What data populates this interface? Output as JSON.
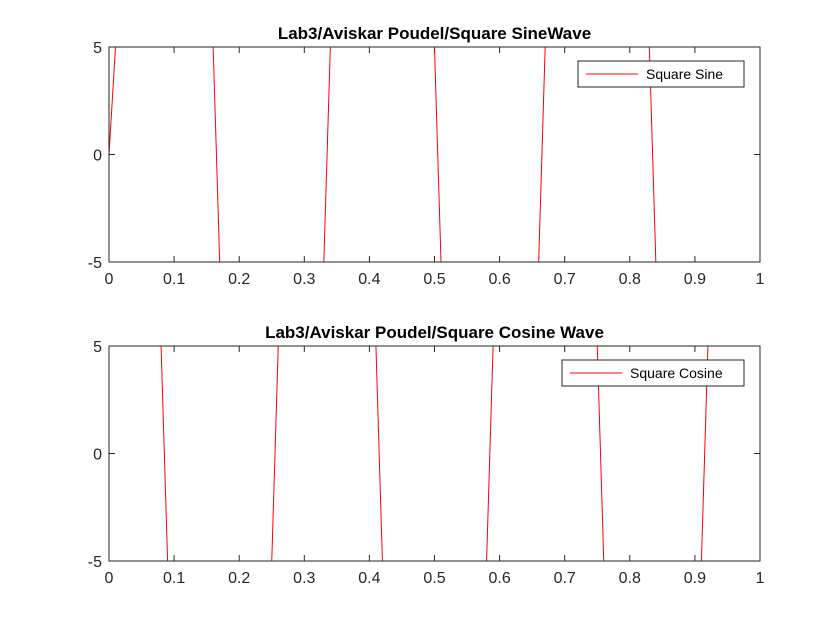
{
  "chart_data": [
    {
      "type": "line",
      "title": "Lab3/Aviskar Poudel/Square SineWave",
      "xlabel": "",
      "ylabel": "",
      "xlim": [
        0,
        1
      ],
      "ylim": [
        -5,
        5
      ],
      "x_ticks": [
        "0",
        "0.1",
        "0.2",
        "0.3",
        "0.4",
        "0.5",
        "0.6",
        "0.7",
        "0.8",
        "0.9",
        "1"
      ],
      "y_ticks": [
        "-5",
        "0",
        "5"
      ],
      "grid": false,
      "legend": {
        "placement": "top-right",
        "entries": [
          "Square Sine"
        ]
      },
      "series": [
        {
          "name": "Square Sine",
          "color": "#ff0000",
          "x": [
            0,
            0.01,
            0.16,
            0.17,
            0.33,
            0.34,
            0.5,
            0.51,
            0.66,
            0.67,
            0.83,
            0.84,
            1.0
          ],
          "y": [
            0,
            5,
            5,
            -5,
            -5,
            5,
            5,
            -5,
            -5,
            5,
            5,
            -5,
            -5
          ]
        }
      ]
    },
    {
      "type": "line",
      "title": "Lab3/Aviskar Poudel/Square Cosine Wave",
      "xlabel": "",
      "ylabel": "",
      "xlim": [
        0,
        1
      ],
      "ylim": [
        -5,
        5
      ],
      "x_ticks": [
        "0",
        "0.1",
        "0.2",
        "0.3",
        "0.4",
        "0.5",
        "0.6",
        "0.7",
        "0.8",
        "0.9",
        "1"
      ],
      "y_ticks": [
        "-5",
        "0",
        "5"
      ],
      "grid": false,
      "legend": {
        "placement": "top-right",
        "entries": [
          "Square Cosine"
        ]
      },
      "series": [
        {
          "name": "Square Cosine",
          "color": "#ff0000",
          "x": [
            0,
            0.08,
            0.09,
            0.25,
            0.26,
            0.41,
            0.42,
            0.58,
            0.59,
            0.75,
            0.76,
            0.91,
            0.92,
            1.0
          ],
          "y": [
            5,
            5,
            -5,
            -5,
            5,
            5,
            -5,
            -5,
            5,
            5,
            -5,
            -5,
            5,
            5
          ]
        }
      ]
    }
  ]
}
